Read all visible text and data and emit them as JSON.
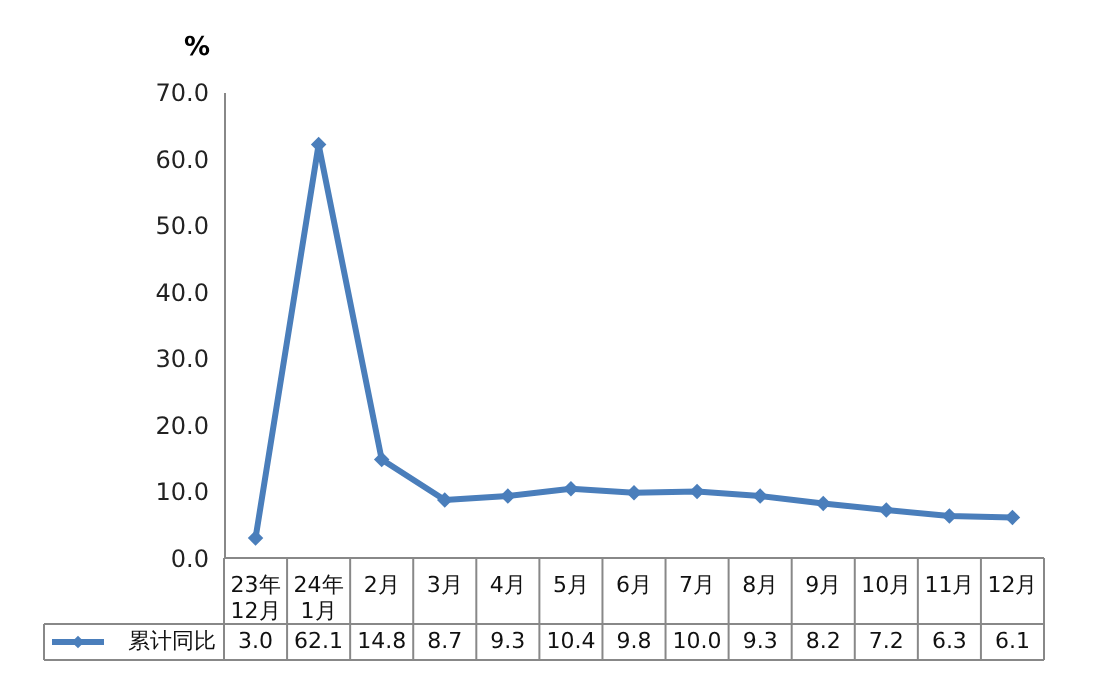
{
  "chart_data": {
    "type": "line",
    "ylabel": "%",
    "categories": [
      "23年\n12月",
      "24年\n1月",
      "2月",
      "3月",
      "4月",
      "5月",
      "6月",
      "7月",
      "8月",
      "9月",
      "10月",
      "11月",
      "12月"
    ],
    "series": [
      {
        "name": "累计同比",
        "color": "#4a7ebb",
        "values": [
          3.0,
          62.1,
          14.8,
          8.7,
          9.3,
          10.4,
          9.8,
          10.0,
          9.3,
          8.2,
          7.2,
          6.3,
          6.1
        ],
        "value_labels": [
          "3.0",
          "62.1",
          "14.8",
          "8.7",
          "9.3",
          "10.4",
          "9.8",
          "10.0",
          "9.3",
          "8.2",
          "7.2",
          "6.3",
          "6.1"
        ]
      }
    ],
    "ylim": [
      0,
      70
    ],
    "yticks": [
      {
        "value": 0,
        "label": "0.0"
      },
      {
        "value": 10,
        "label": "10.0"
      },
      {
        "value": 20,
        "label": "20.0"
      },
      {
        "value": 30,
        "label": "30.0"
      },
      {
        "value": 40,
        "label": "40.0"
      },
      {
        "value": 50,
        "label": "50.0"
      },
      {
        "value": 60,
        "label": "60.0"
      },
      {
        "value": 70,
        "label": "70.0"
      }
    ],
    "legend": "bottom",
    "grid": false,
    "marker": "diamond",
    "line_style": "solid"
  }
}
